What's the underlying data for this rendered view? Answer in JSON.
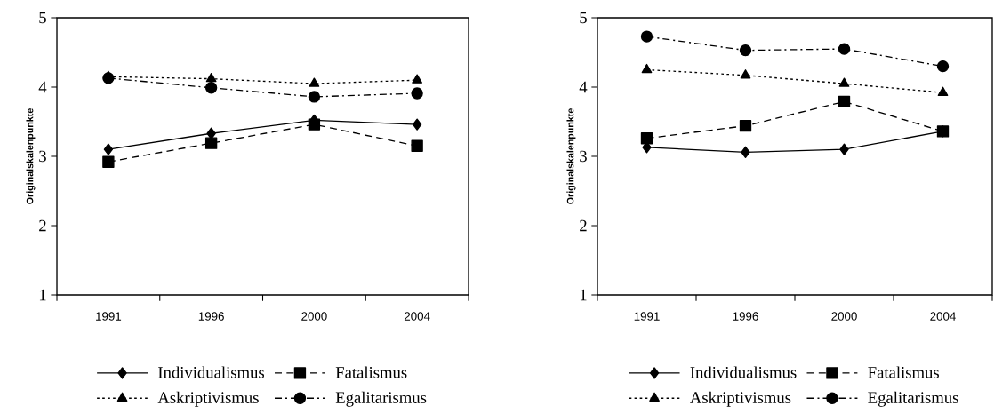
{
  "chart_data": [
    {
      "type": "line",
      "ylabel": "Originalskalenpunkte",
      "categories": [
        "1991",
        "1996",
        "2000",
        "2004"
      ],
      "ylim": [
        1,
        5
      ],
      "yticks": [
        1,
        2,
        3,
        4,
        5
      ],
      "legend": "bottom",
      "series": [
        {
          "name": "Individualismus",
          "color": "#000000",
          "marker": "diamond",
          "line_style": "solid",
          "values": [
            3.1,
            3.33,
            3.52,
            3.46
          ]
        },
        {
          "name": "Fatalismus",
          "color": "#000000",
          "marker": "square",
          "line_style": "dashed",
          "values": [
            2.92,
            3.19,
            3.46,
            3.15
          ]
        },
        {
          "name": "Askriptivismus",
          "color": "#000000",
          "marker": "triangle",
          "line_style": "dotted",
          "values": [
            4.15,
            4.12,
            4.05,
            4.1
          ]
        },
        {
          "name": "Egalitarismus",
          "color": "#000000",
          "marker": "circle",
          "line_style": "dashdot",
          "values": [
            4.13,
            3.99,
            3.86,
            3.91
          ]
        }
      ]
    },
    {
      "type": "line",
      "ylabel": "Originalskalenpunkte",
      "categories": [
        "1991",
        "1996",
        "2000",
        "2004"
      ],
      "ylim": [
        1,
        5
      ],
      "yticks": [
        1,
        2,
        3,
        4,
        5
      ],
      "legend": "bottom",
      "series": [
        {
          "name": "Individualismus",
          "color": "#000000",
          "marker": "diamond",
          "line_style": "solid",
          "values": [
            3.13,
            3.06,
            3.1,
            3.36
          ]
        },
        {
          "name": "Fatalismus",
          "color": "#000000",
          "marker": "square",
          "line_style": "dashed",
          "values": [
            3.26,
            3.44,
            3.79,
            3.36
          ]
        },
        {
          "name": "Askriptivismus",
          "color": "#000000",
          "marker": "triangle",
          "line_style": "dotted",
          "values": [
            4.25,
            4.17,
            4.05,
            3.92
          ]
        },
        {
          "name": "Egalitarismus",
          "color": "#000000",
          "marker": "circle",
          "line_style": "dashdot",
          "values": [
            4.73,
            4.53,
            4.55,
            4.3
          ]
        }
      ]
    }
  ]
}
